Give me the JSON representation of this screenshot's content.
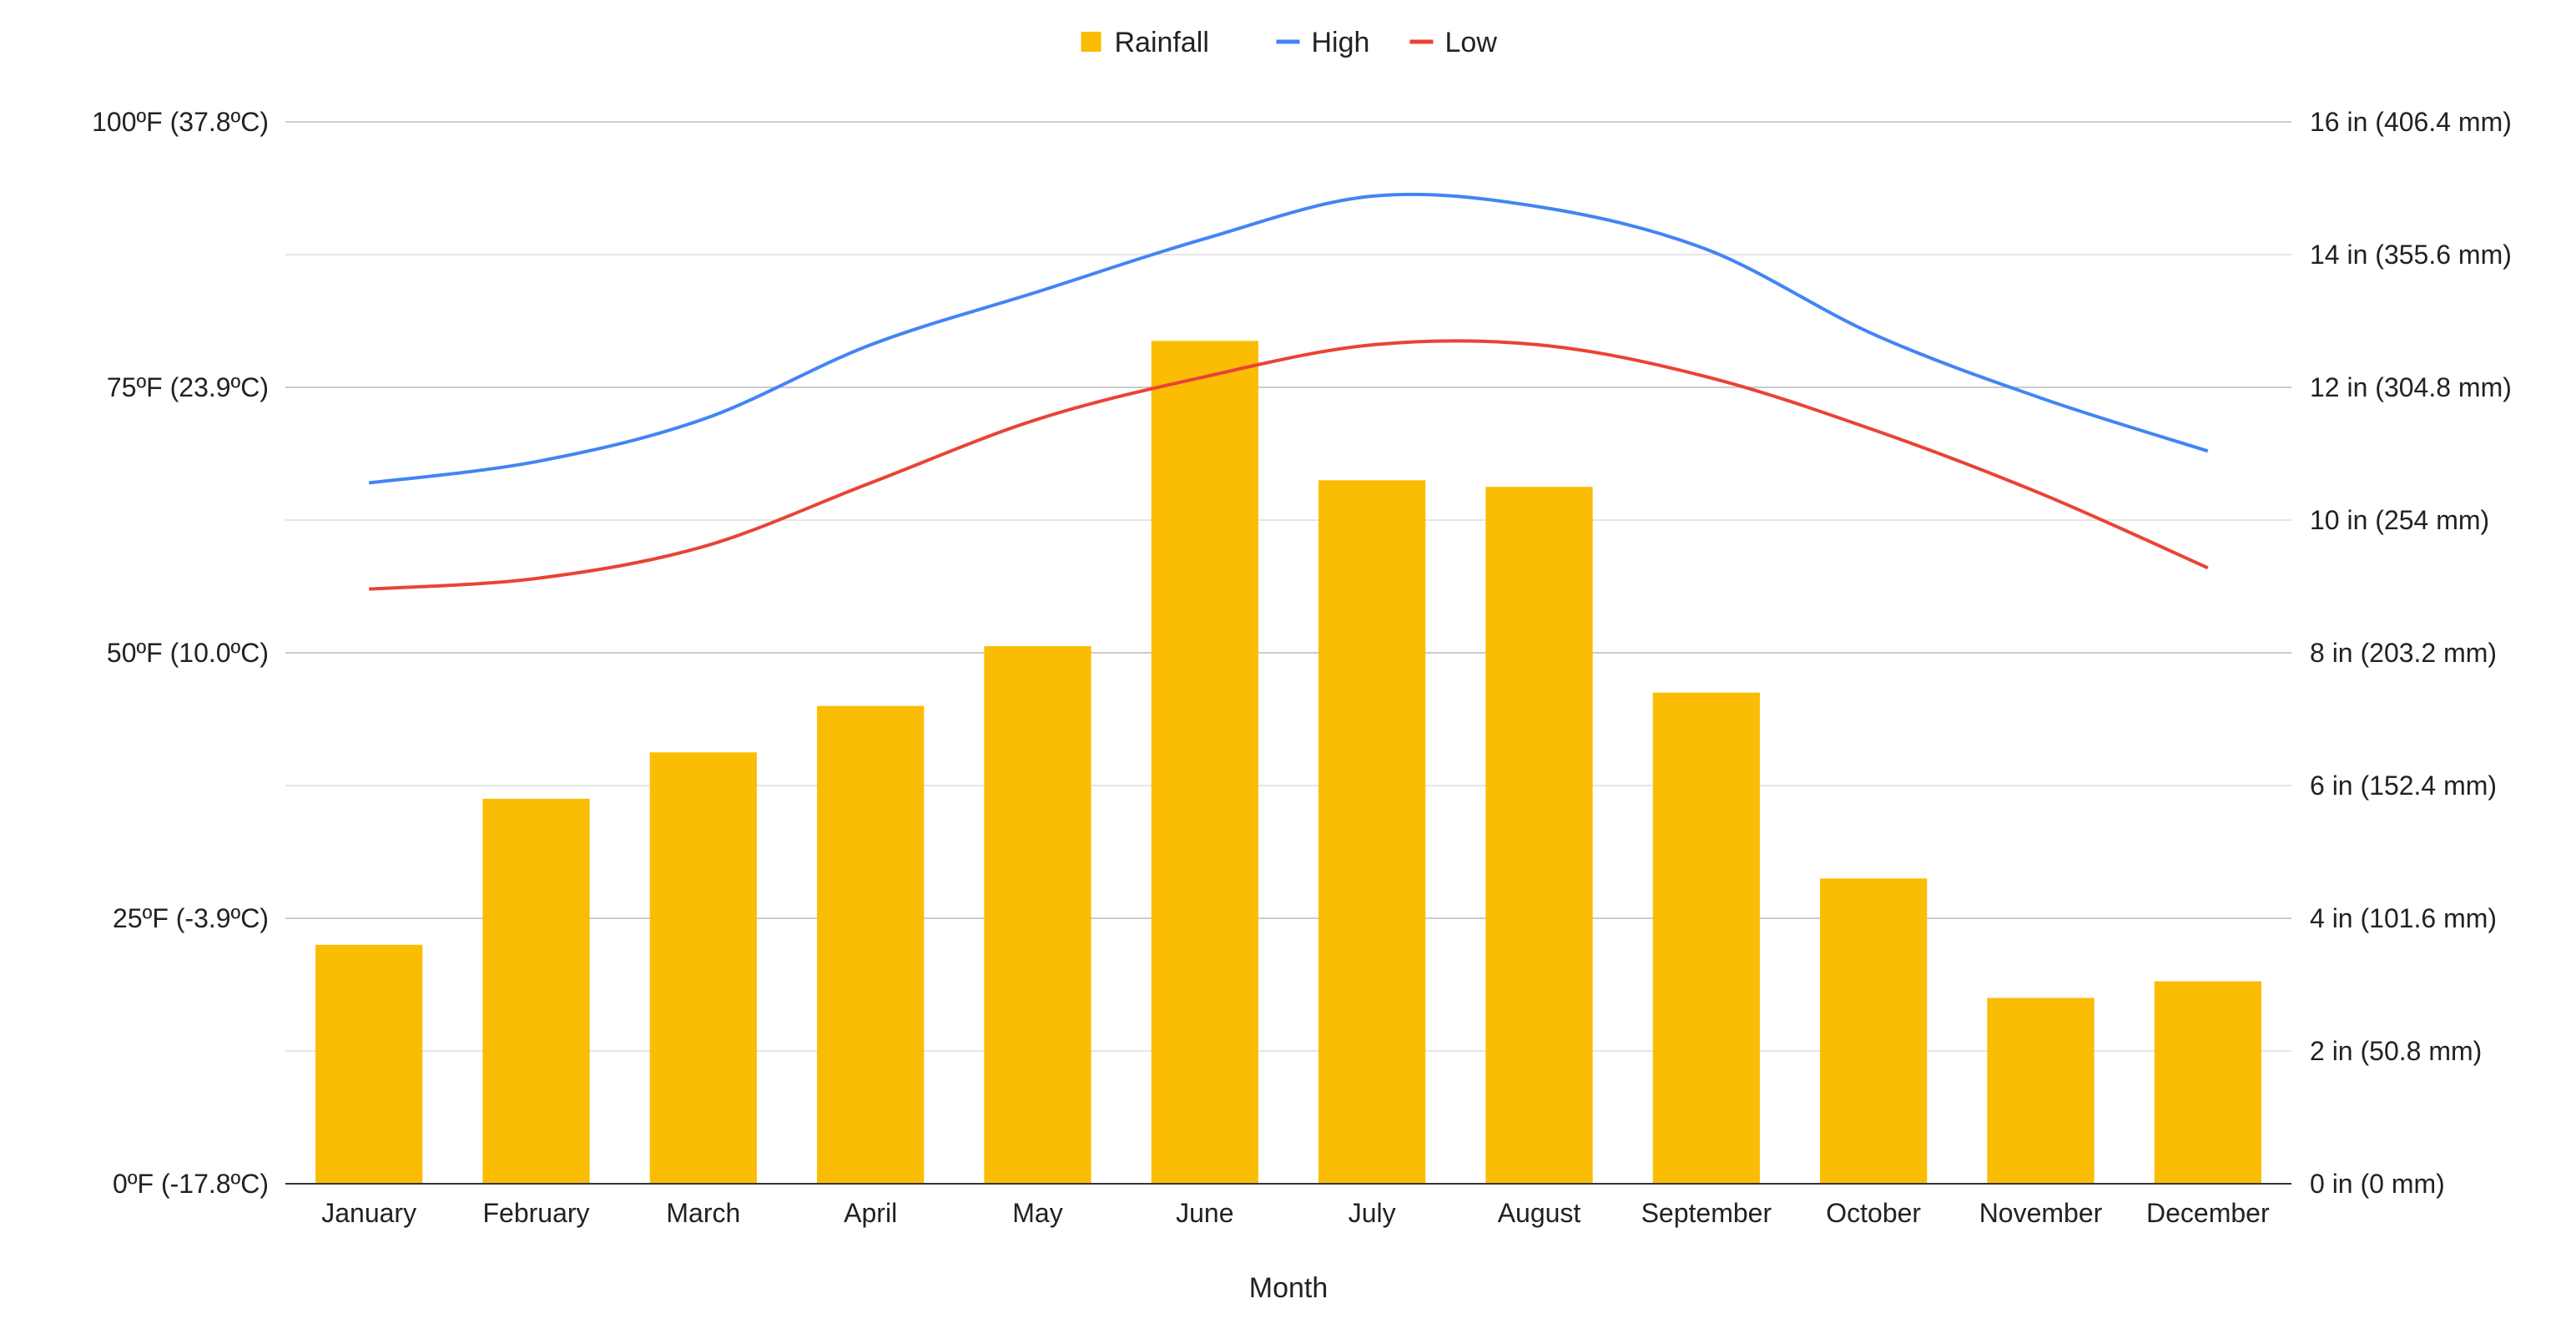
{
  "chart_data": {
    "type": "bar",
    "categories": [
      "January",
      "February",
      "March",
      "April",
      "May",
      "June",
      "July",
      "August",
      "September",
      "October",
      "November",
      "December"
    ],
    "xlabel": "Month",
    "series": [
      {
        "name": "Rainfall",
        "kind": "bar",
        "axis": "right",
        "color": "#FBBC04",
        "values": [
          3.6,
          5.8,
          6.5,
          7.2,
          8.1,
          12.7,
          10.6,
          10.5,
          7.4,
          4.6,
          2.8,
          3.05
        ]
      },
      {
        "name": "High",
        "kind": "line",
        "axis": "left",
        "color": "#4285F4",
        "values": [
          66,
          68,
          72,
          79,
          84,
          89,
          93,
          92,
          88,
          80,
          74,
          69
        ]
      },
      {
        "name": "Low",
        "kind": "line",
        "axis": "left",
        "color": "#EA4335",
        "values": [
          56,
          57,
          60,
          66,
          72,
          76,
          79,
          79,
          76,
          71,
          65,
          58
        ]
      }
    ],
    "left_axis": {
      "range": [
        0,
        100
      ],
      "ticks": [
        {
          "value": 0,
          "label": "0ºF (-17.8ºC)"
        },
        {
          "value": 25,
          "label": "25ºF (-3.9ºC)"
        },
        {
          "value": 50,
          "label": "50ºF (10.0ºC)"
        },
        {
          "value": 75,
          "label": "75ºF (23.9ºC)"
        },
        {
          "value": 100,
          "label": "100ºF (37.8ºC)"
        }
      ]
    },
    "right_axis": {
      "range": [
        0,
        16
      ],
      "ticks": [
        {
          "value": 0,
          "label": "0 in (0 mm)"
        },
        {
          "value": 2,
          "label": "2 in (50.8 mm)"
        },
        {
          "value": 4,
          "label": "4 in (101.6 mm)"
        },
        {
          "value": 6,
          "label": "6 in (152.4 mm)"
        },
        {
          "value": 8,
          "label": "8 in (203.2 mm)"
        },
        {
          "value": 10,
          "label": "10 in (254 mm)"
        },
        {
          "value": 12,
          "label": "12 in (304.8 mm)"
        },
        {
          "value": 14,
          "label": "14 in (355.6 mm)"
        },
        {
          "value": 16,
          "label": "16 in (406.4 mm)"
        }
      ]
    },
    "grid": true,
    "legend_position": "top-center"
  }
}
